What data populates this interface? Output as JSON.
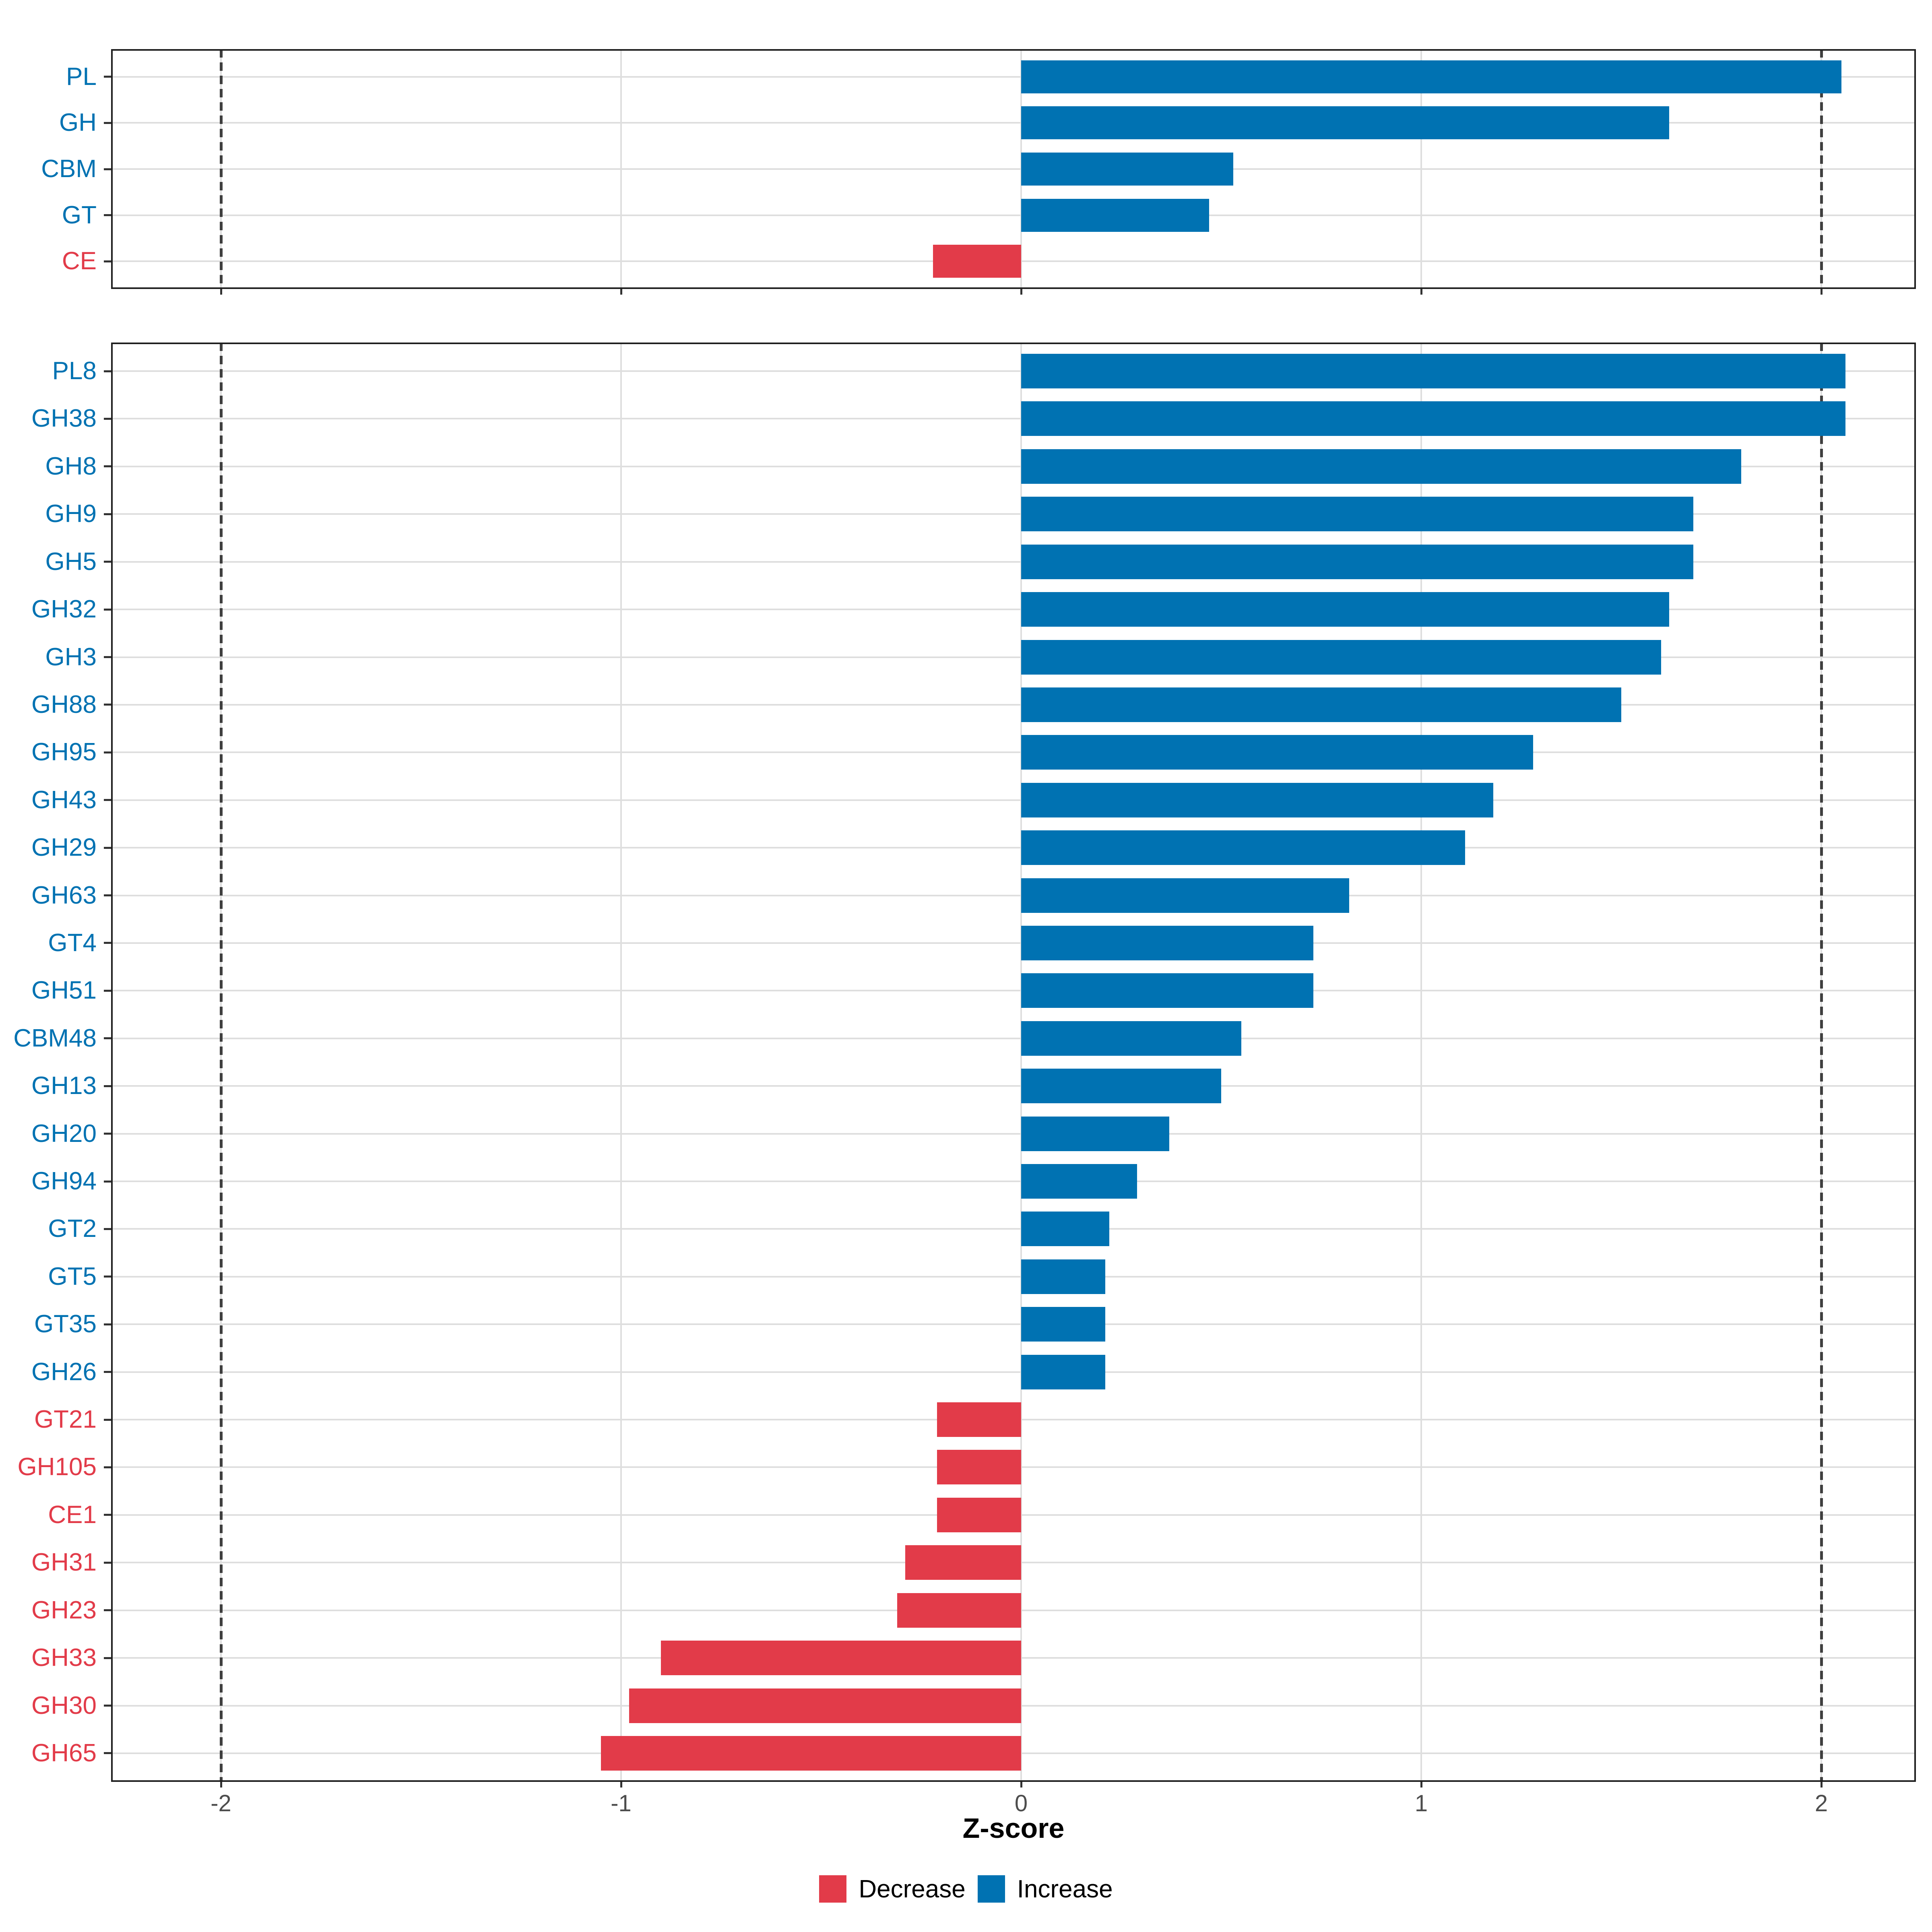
{
  "figure": {
    "background": "#ffffff"
  },
  "axis": {
    "label": "Z-score",
    "ticks": [
      "-2",
      "-1",
      "0",
      "1",
      "2"
    ],
    "tick_values": [
      -2,
      -1,
      0,
      1,
      2
    ],
    "dashed_guides": [
      -2,
      2
    ],
    "range": [
      -2.27,
      2.24
    ]
  },
  "legend": {
    "items": [
      {
        "label": "Decrease",
        "color": "#e23b49"
      },
      {
        "label": "Increase",
        "color": "#0072b2"
      }
    ]
  },
  "colors": {
    "increase": "#0072b2",
    "decrease": "#e23b49",
    "grid": "#dedede",
    "dashed_guide": "#3f3f3f",
    "tick": "#333333",
    "tick_label": "#4d4d4d",
    "panel_border": "#1f1f1f"
  },
  "chart_data": [
    {
      "type": "bar",
      "orientation": "horizontal",
      "panel": "cazyme-classes",
      "title": "",
      "xlabel": "Z-score",
      "ylabel": "",
      "xlim": [
        -2.27,
        2.24
      ],
      "grid": "on",
      "legend_position": "bottom",
      "categories": [
        "PL",
        "GH",
        "CBM",
        "GT",
        "CE"
      ],
      "values": [
        2.05,
        1.62,
        0.53,
        0.47,
        -0.22
      ],
      "directions": [
        "Increase",
        "Increase",
        "Increase",
        "Increase",
        "Decrease"
      ]
    },
    {
      "type": "bar",
      "orientation": "horizontal",
      "panel": "cazyme-families",
      "title": "",
      "xlabel": "Z-score",
      "ylabel": "",
      "xlim": [
        -2.27,
        2.24
      ],
      "grid": "on",
      "legend_position": "bottom",
      "categories": [
        "PL8",
        "GH38",
        "GH8",
        "GH9",
        "GH5",
        "GH32",
        "GH3",
        "GH88",
        "GH95",
        "GH43",
        "GH29",
        "GH63",
        "GT4",
        "GH51",
        "CBM48",
        "GH13",
        "GH20",
        "GH94",
        "GT2",
        "GT5",
        "GT35",
        "GH26",
        "GT21",
        "GH105",
        "CE1",
        "GH31",
        "GH23",
        "GH33",
        "GH30",
        "GH65"
      ],
      "values": [
        2.06,
        2.06,
        1.8,
        1.68,
        1.68,
        1.62,
        1.6,
        1.5,
        1.28,
        1.18,
        1.11,
        0.82,
        0.73,
        0.73,
        0.55,
        0.5,
        0.37,
        0.29,
        0.22,
        0.21,
        0.21,
        0.21,
        -0.21,
        -0.21,
        -0.21,
        -0.29,
        -0.31,
        -0.9,
        -0.98,
        -1.05
      ],
      "directions": [
        "Increase",
        "Increase",
        "Increase",
        "Increase",
        "Increase",
        "Increase",
        "Increase",
        "Increase",
        "Increase",
        "Increase",
        "Increase",
        "Increase",
        "Increase",
        "Increase",
        "Increase",
        "Increase",
        "Increase",
        "Increase",
        "Increase",
        "Increase",
        "Increase",
        "Increase",
        "Decrease",
        "Decrease",
        "Decrease",
        "Decrease",
        "Decrease",
        "Decrease",
        "Decrease",
        "Decrease"
      ]
    }
  ]
}
